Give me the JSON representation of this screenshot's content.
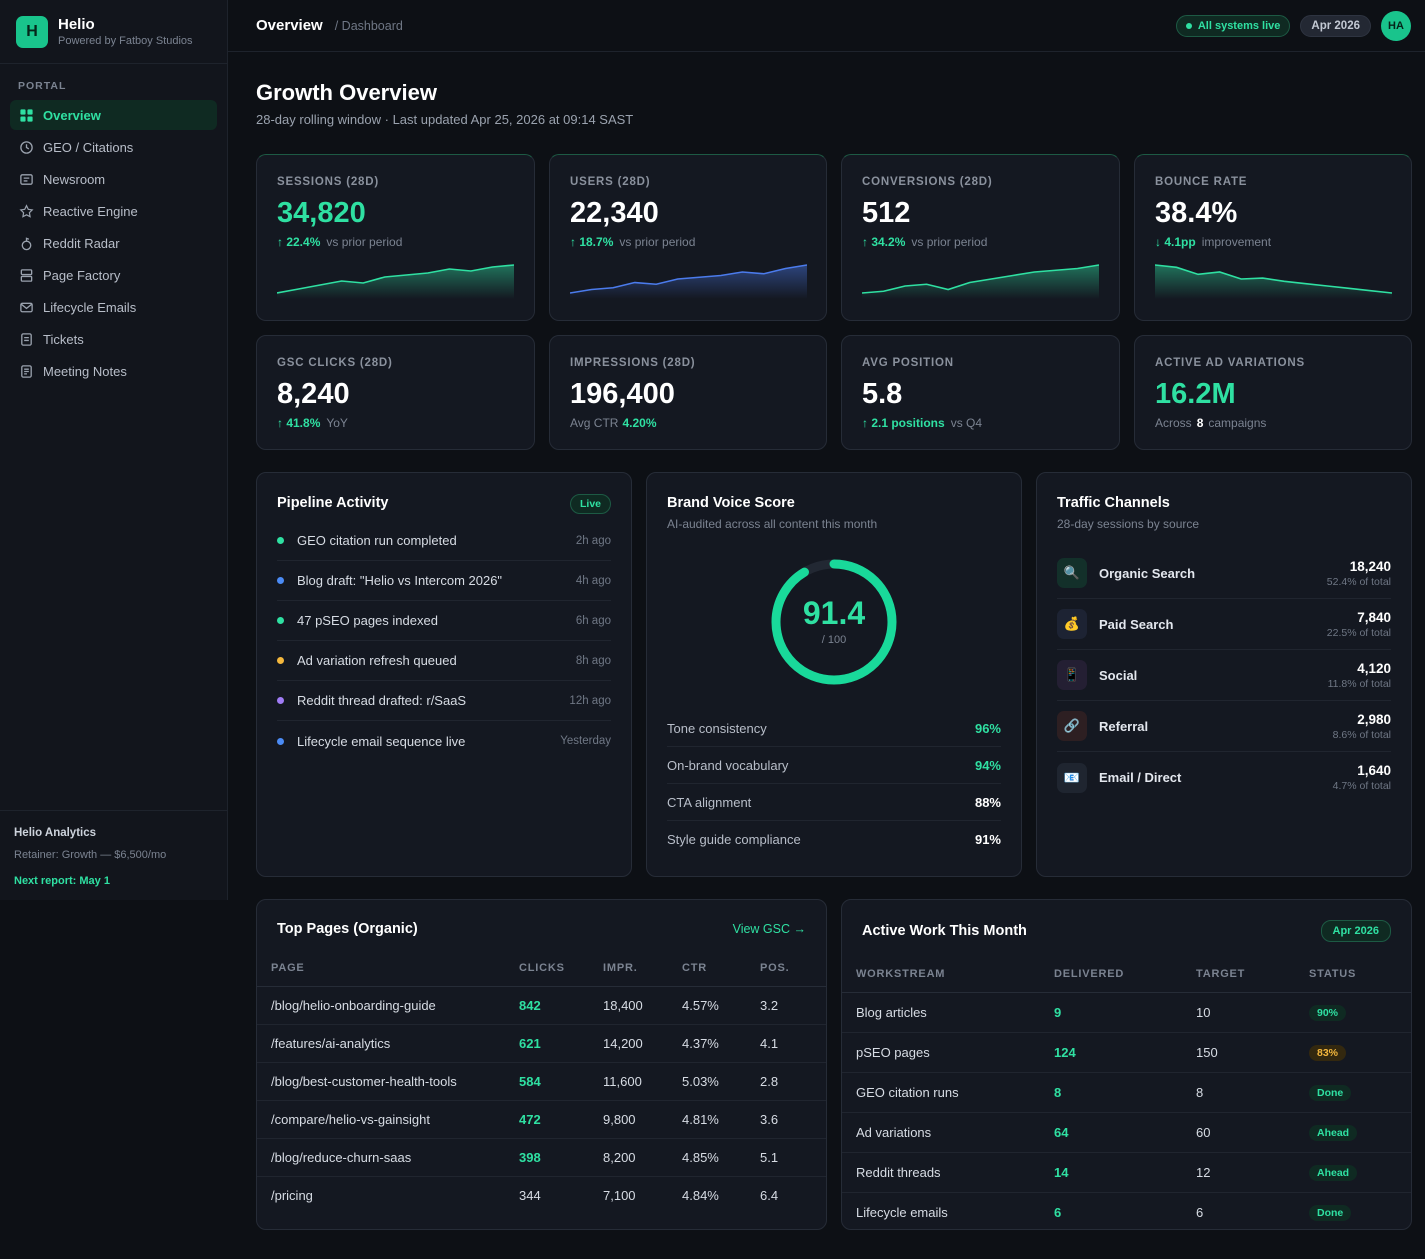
{
  "brand": {
    "logo": "H",
    "name": "Helio",
    "sub": "Powered by Fatboy Studios"
  },
  "sidebar": {
    "section": "PORTAL",
    "items": [
      {
        "label": "Overview",
        "icon": "grid-icon"
      },
      {
        "label": "GEO / Citations",
        "icon": "clock-icon"
      },
      {
        "label": "Newsroom",
        "icon": "newspaper-icon"
      },
      {
        "label": "Reactive Engine",
        "icon": "star-icon"
      },
      {
        "label": "Reddit Radar",
        "icon": "reddit-icon"
      },
      {
        "label": "Page Factory",
        "icon": "pages-icon"
      },
      {
        "label": "Lifecycle Emails",
        "icon": "mail-icon"
      },
      {
        "label": "Tickets",
        "icon": "ticket-icon"
      },
      {
        "label": "Meeting Notes",
        "icon": "notes-icon"
      }
    ],
    "footer": {
      "title": "Helio Analytics",
      "retainer": "Retainer: Growth — $6,500/mo",
      "next": "Next report: May 1"
    }
  },
  "topbar": {
    "crumb": "Overview",
    "sub": "/ Dashboard",
    "status": "All systems live",
    "date": "Apr 2026",
    "avatar": "HA"
  },
  "header": {
    "title": "Growth Overview",
    "subtitle": "28-day rolling window · Last updated Apr 25, 2026 at 09:14 SAST"
  },
  "kpis_row1": [
    {
      "label": "SESSIONS (28D)",
      "value": "34,820",
      "delta": "↑ 22.4%",
      "note": "vs prior period",
      "color": "#2fe0a2",
      "trend": [
        3,
        4,
        5,
        6,
        5.5,
        7,
        7.5,
        8,
        9,
        8.5,
        9.5,
        10
      ]
    },
    {
      "label": "USERS (28D)",
      "value": "22,340",
      "delta": "↑ 18.7%",
      "note": "vs prior period",
      "color": "#4b7bec",
      "trend": [
        2,
        3,
        3.5,
        5,
        4.5,
        6,
        6.5,
        7,
        8,
        7.5,
        9,
        10
      ]
    },
    {
      "label": "CONVERSIONS (28D)",
      "value": "512",
      "delta": "↑ 34.2%",
      "note": "vs prior period",
      "color": "#2fe0a2",
      "trend": [
        2,
        2.5,
        4,
        4.5,
        3,
        5,
        6,
        7,
        8,
        8.5,
        9,
        10
      ]
    },
    {
      "label": "BOUNCE RATE",
      "value": "38.4%",
      "delta": "↓ 4.1pp",
      "note": "improvement",
      "color": "#2fe0a2",
      "trend": [
        10,
        9.5,
        8,
        8.5,
        7,
        7.2,
        6.5,
        6,
        5.5,
        5,
        4.5,
        4
      ]
    }
  ],
  "kpis_row2": [
    {
      "label": "GSC CLICKS (28D)",
      "value": "8,240",
      "delta": "↑ 41.8%",
      "note": "YoY"
    },
    {
      "label": "IMPRESSIONS (28D)",
      "value": "196,400",
      "pre": "Avg CTR",
      "highlight": "4.20%"
    },
    {
      "label": "AVG POSITION",
      "value": "5.8",
      "delta": "↑ 2.1 positions",
      "note": "vs Q4"
    },
    {
      "label": "ACTIVE AD VARIATIONS",
      "value": "16.2M",
      "pre": "Across",
      "count": "8",
      "note": "campaigns"
    }
  ],
  "pipeline": {
    "title": "Pipeline Activity",
    "badge": "Live",
    "items": [
      {
        "text": "GEO citation run completed",
        "time": "2h ago",
        "color": "#2fe0a2"
      },
      {
        "text": "Blog draft: \"Helio vs Intercom 2026\"",
        "time": "4h ago",
        "color": "#4b8bf5"
      },
      {
        "text": "47 pSEO pages indexed",
        "time": "6h ago",
        "color": "#2fe0a2"
      },
      {
        "text": "Ad variation refresh queued",
        "time": "8h ago",
        "color": "#f4b73d"
      },
      {
        "text": "Reddit thread drafted: r/SaaS",
        "time": "12h ago",
        "color": "#a07cf5"
      },
      {
        "text": "Lifecycle email sequence live",
        "time": "Yesterday",
        "color": "#4b8bf5"
      }
    ]
  },
  "brand_voice": {
    "title": "Brand Voice Score",
    "subtitle": "AI-audited across all content this month",
    "score": "91.4",
    "score_value": 91.4,
    "max": "/ 100",
    "metrics": [
      {
        "label": "Tone consistency",
        "value": "96%",
        "color": "#2fe0a2"
      },
      {
        "label": "On-brand vocabulary",
        "value": "94%",
        "color": "#2fe0a2"
      },
      {
        "label": "CTA alignment",
        "value": "88%",
        "color": "#ffffff"
      },
      {
        "label": "Style guide compliance",
        "value": "91%",
        "color": "#ffffff"
      }
    ]
  },
  "traffic": {
    "title": "Traffic Channels",
    "subtitle": "28-day sessions by source",
    "channels": [
      {
        "name": "Organic Search",
        "value": "18,240",
        "pct": "52.4% of total",
        "icon": "🔍"
      },
      {
        "name": "Paid Search",
        "value": "7,840",
        "pct": "22.5% of total",
        "icon": "💰"
      },
      {
        "name": "Social",
        "value": "4,120",
        "pct": "11.8% of total",
        "icon": "📱"
      },
      {
        "name": "Referral",
        "value": "2,980",
        "pct": "8.6% of total",
        "icon": "🔗"
      },
      {
        "name": "Email / Direct",
        "value": "1,640",
        "pct": "4.7% of total",
        "icon": "📧"
      }
    ]
  },
  "top_pages": {
    "title": "Top Pages (Organic)",
    "link": "View GSC →",
    "columns": [
      "PAGE",
      "CLICKS",
      "IMPR.",
      "CTR",
      "POS."
    ],
    "rows": [
      {
        "page": "/blog/helio-onboarding-guide",
        "clicks": "842",
        "impr": "18,400",
        "ctr": "4.57%",
        "pos": "3.2",
        "hl": true
      },
      {
        "page": "/features/ai-analytics",
        "clicks": "621",
        "impr": "14,200",
        "ctr": "4.37%",
        "pos": "4.1",
        "hl": true
      },
      {
        "page": "/blog/best-customer-health-tools",
        "clicks": "584",
        "impr": "11,600",
        "ctr": "5.03%",
        "pos": "2.8",
        "hl": true
      },
      {
        "page": "/compare/helio-vs-gainsight",
        "clicks": "472",
        "impr": "9,800",
        "ctr": "4.81%",
        "pos": "3.6",
        "hl": true
      },
      {
        "page": "/blog/reduce-churn-saas",
        "clicks": "398",
        "impr": "8,200",
        "ctr": "4.85%",
        "pos": "5.1",
        "hl": true
      },
      {
        "page": "/pricing",
        "clicks": "344",
        "impr": "7,100",
        "ctr": "4.84%",
        "pos": "6.4",
        "hl": false
      }
    ]
  },
  "active_work": {
    "title": "Active Work This Month",
    "badge": "Apr 2026",
    "columns": [
      "WORKSTREAM",
      "DELIVERED",
      "TARGET",
      "STATUS"
    ],
    "rows": [
      {
        "name": "Blog articles",
        "delivered": "9",
        "target": "10",
        "status": "90%",
        "tone": "green"
      },
      {
        "name": "pSEO pages",
        "delivered": "124",
        "target": "150",
        "status": "83%",
        "tone": "amber"
      },
      {
        "name": "GEO citation runs",
        "delivered": "8",
        "target": "8",
        "status": "Done",
        "tone": "green"
      },
      {
        "name": "Ad variations",
        "delivered": "64",
        "target": "60",
        "status": "Ahead",
        "tone": "green"
      },
      {
        "name": "Reddit threads",
        "delivered": "14",
        "target": "12",
        "status": "Ahead",
        "tone": "green"
      },
      {
        "name": "Lifecycle emails",
        "delivered": "6",
        "target": "6",
        "status": "Done",
        "tone": "green"
      }
    ]
  }
}
